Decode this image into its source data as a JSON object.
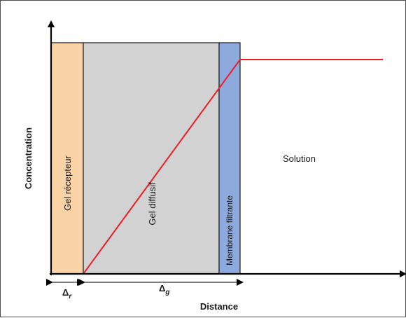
{
  "axes": {
    "y_label": "Concentration",
    "x_label": "Distance"
  },
  "regions": {
    "receptor_gel": {
      "label": "Gel récepteur",
      "color": "#fad3a6"
    },
    "diffusive_gel": {
      "label": "Gel diffusif",
      "color": "#d2d2d2"
    },
    "filter_membrane": {
      "label": "Membrane filtrante",
      "color": "#8ea9db"
    },
    "solution": {
      "label": "Solution"
    }
  },
  "thickness_labels": {
    "receptor": {
      "symbol": "Δ",
      "subscript": "r"
    },
    "gel": {
      "symbol": "Δ",
      "subscript": "g"
    }
  },
  "profile": {
    "color": "#ee1c25"
  }
}
